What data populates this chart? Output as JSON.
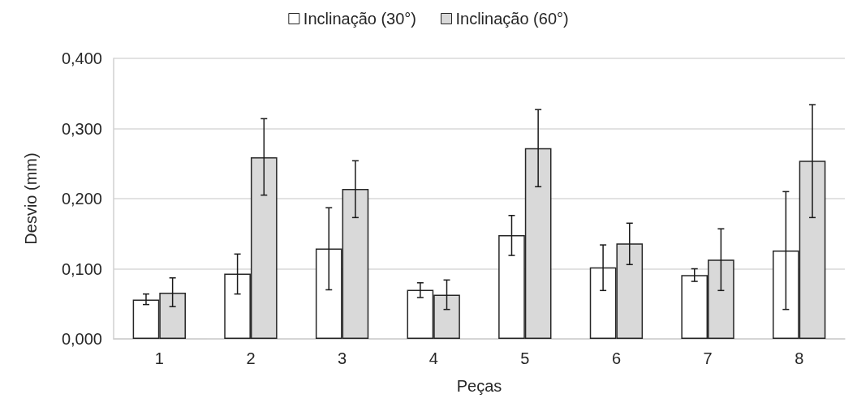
{
  "chart_data": {
    "type": "bar",
    "xlabel": "Peças",
    "ylabel": "Desvio (mm)",
    "categories": [
      "1",
      "2",
      "3",
      "4",
      "5",
      "6",
      "7",
      "8"
    ],
    "series": [
      {
        "name": "Inclinação (30°)",
        "color": "#ffffff",
        "values": [
          0.056,
          0.093,
          0.129,
          0.07,
          0.148,
          0.102,
          0.091,
          0.126
        ],
        "errors": [
          [
            0.049,
            0.064
          ],
          [
            0.064,
            0.121
          ],
          [
            0.07,
            0.187
          ],
          [
            0.059,
            0.08
          ],
          [
            0.119,
            0.176
          ],
          [
            0.069,
            0.134
          ],
          [
            0.082,
            0.1
          ],
          [
            0.042,
            0.21
          ]
        ]
      },
      {
        "name": "Inclinação (60°)",
        "color": "#d9d9d9",
        "values": [
          0.066,
          0.259,
          0.214,
          0.063,
          0.272,
          0.136,
          0.113,
          0.254
        ],
        "errors": [
          [
            0.046,
            0.087
          ],
          [
            0.205,
            0.314
          ],
          [
            0.173,
            0.254
          ],
          [
            0.042,
            0.084
          ],
          [
            0.217,
            0.327
          ],
          [
            0.106,
            0.165
          ],
          [
            0.069,
            0.157
          ],
          [
            0.173,
            0.334
          ]
        ]
      }
    ],
    "ylim": [
      0,
      0.4
    ],
    "yticks": [
      {
        "value": 0,
        "label": "0,000"
      },
      {
        "value": 0.1,
        "label": "0,100"
      },
      {
        "value": 0.2,
        "label": "0,200"
      },
      {
        "value": 0.3,
        "label": "0,300"
      },
      {
        "value": 0.4,
        "label": "0,400"
      }
    ],
    "grid": "y",
    "legend": "top"
  }
}
